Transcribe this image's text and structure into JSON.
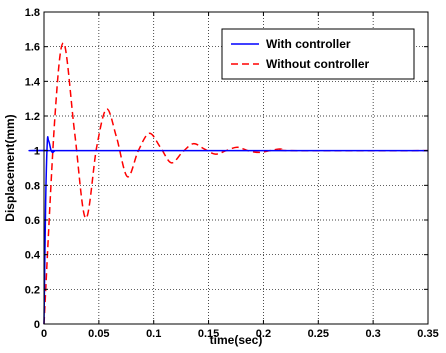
{
  "chart_data": {
    "type": "line",
    "title": "",
    "xlabel": "time(sec)",
    "ylabel": "Displacement(mm)",
    "xlim": [
      0,
      0.35
    ],
    "ylim": [
      0,
      1.8
    ],
    "x_ticks": [
      0,
      0.05,
      0.1,
      0.15,
      0.2,
      0.25,
      0.3,
      0.35
    ],
    "x_tick_labels": [
      "0",
      "0.05",
      "0.1",
      "0.15",
      "0.2",
      "0.25",
      "0.3",
      "0.35"
    ],
    "y_ticks": [
      0,
      0.2,
      0.4,
      0.6,
      0.8,
      1,
      1.2,
      1.4,
      1.6,
      1.8
    ],
    "y_tick_labels": [
      "0",
      "0.2",
      "0.4",
      "0.6",
      "0.8",
      "1",
      "1.2",
      "1.4",
      "1.6",
      "1.8"
    ],
    "grid": true,
    "grid_style": "dotted",
    "legend_position": "top-right",
    "series": [
      {
        "name": "With controller",
        "color": "#0000ff",
        "line_style": "solid",
        "x": [
          0,
          0.0015,
          0.003,
          0.004,
          0.005,
          0.0065,
          0.008,
          0.01,
          0.012,
          0.35
        ],
        "y": [
          0,
          0.7,
          1.05,
          1.06,
          1.04,
          1.0,
          0.99,
          1.0,
          1.0,
          1.0
        ]
      },
      {
        "name": "Without controller",
        "color": "#ff0000",
        "line_style": "dashed",
        "x": [
          0,
          0.01,
          0.018,
          0.028,
          0.038,
          0.048,
          0.057,
          0.066,
          0.076,
          0.086,
          0.096,
          0.106,
          0.116,
          0.126,
          0.136,
          0.146,
          0.156,
          0.166,
          0.176,
          0.186,
          0.196,
          0.206,
          0.216,
          0.226,
          0.35
        ],
        "y": [
          0,
          1.2,
          1.62,
          1.1,
          0.61,
          1.02,
          1.24,
          1.08,
          0.85,
          1.0,
          1.1,
          1.02,
          0.93,
          0.99,
          1.04,
          1.01,
          0.98,
          1.0,
          1.02,
          1.0,
          0.99,
          1.0,
          1.01,
          1.0,
          1.0
        ]
      }
    ]
  }
}
